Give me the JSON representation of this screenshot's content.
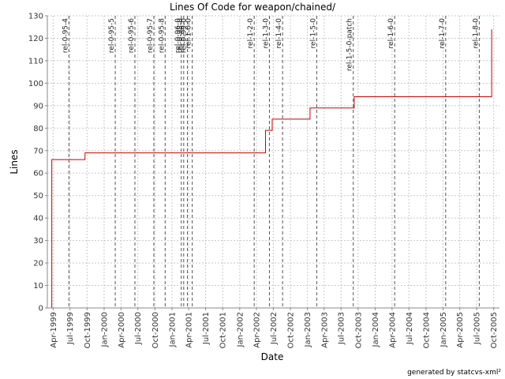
{
  "chart_data": {
    "type": "line",
    "title": "Lines Of Code for weapon/chained/",
    "xlabel": "Date",
    "ylabel": "Lines",
    "footer": "generated by statcvs-xml²",
    "ylim": [
      0,
      130
    ],
    "xlim": [
      "1999-03-01",
      "2005-11-01"
    ],
    "y_ticks": [
      0,
      10,
      20,
      30,
      40,
      50,
      60,
      70,
      80,
      90,
      100,
      110,
      120,
      130
    ],
    "x_ticks": [
      {
        "date": "1999-04-01",
        "label": "Apr-1999"
      },
      {
        "date": "1999-07-01",
        "label": "Jul-1999"
      },
      {
        "date": "1999-10-01",
        "label": "Oct-1999"
      },
      {
        "date": "2000-01-01",
        "label": "Jan-2000"
      },
      {
        "date": "2000-04-01",
        "label": "Apr-2000"
      },
      {
        "date": "2000-07-01",
        "label": "Jul-2000"
      },
      {
        "date": "2000-10-01",
        "label": "Oct-2000"
      },
      {
        "date": "2001-01-01",
        "label": "Jan-2001"
      },
      {
        "date": "2001-04-01",
        "label": "Apr-2001"
      },
      {
        "date": "2001-07-01",
        "label": "Jul-2001"
      },
      {
        "date": "2001-10-01",
        "label": "Oct-2001"
      },
      {
        "date": "2002-01-01",
        "label": "Jan-2002"
      },
      {
        "date": "2002-04-01",
        "label": "Apr-2002"
      },
      {
        "date": "2002-07-01",
        "label": "Jul-2002"
      },
      {
        "date": "2002-10-01",
        "label": "Oct-2002"
      },
      {
        "date": "2003-01-01",
        "label": "Jan-2003"
      },
      {
        "date": "2003-04-01",
        "label": "Apr-2003"
      },
      {
        "date": "2003-07-01",
        "label": "Jul-2003"
      },
      {
        "date": "2003-10-01",
        "label": "Oct-2003"
      },
      {
        "date": "2004-01-01",
        "label": "Jan-2004"
      },
      {
        "date": "2004-04-01",
        "label": "Apr-2004"
      },
      {
        "date": "2004-07-01",
        "label": "Jul-2004"
      },
      {
        "date": "2004-10-01",
        "label": "Oct-2004"
      },
      {
        "date": "2005-01-01",
        "label": "Jan-2005"
      },
      {
        "date": "2005-04-01",
        "label": "Apr-2005"
      },
      {
        "date": "2005-07-01",
        "label": "Jul-2005"
      },
      {
        "date": "2005-10-01",
        "label": "Oct-2005"
      }
    ],
    "grid": true,
    "series": [
      {
        "color": "#cc0000",
        "step": true,
        "points": [
          {
            "x": "1999-03-25",
            "y": 0
          },
          {
            "x": "1999-03-25",
            "y": 66
          },
          {
            "x": "1999-09-20",
            "y": 69
          },
          {
            "x": "2002-05-20",
            "y": 79
          },
          {
            "x": "2002-06-25",
            "y": 84
          },
          {
            "x": "2003-01-15",
            "y": 89
          },
          {
            "x": "2003-09-10",
            "y": 94
          },
          {
            "x": "2005-09-20",
            "y": 124
          }
        ]
      }
    ],
    "markers": [
      {
        "date": "1999-06-25",
        "label": "rel-0-95-4"
      },
      {
        "date": "2000-03-01",
        "label": "rel-0-95-5"
      },
      {
        "date": "2000-06-15",
        "label": "rel-0-95-6"
      },
      {
        "date": "2000-09-25",
        "label": "rel-0-95-7"
      },
      {
        "date": "2000-11-25",
        "label": "rel-0-95-8"
      },
      {
        "date": "2001-02-20",
        "label": "rel-0-96-0"
      },
      {
        "date": "2001-03-05",
        "label": "rel-0-98-0"
      },
      {
        "date": "2001-03-25",
        "label": "rel-0-99-0"
      },
      {
        "date": "2001-04-20",
        "label": "rel-1-0-0"
      },
      {
        "date": "2002-03-20",
        "label": "rel-1-2-0"
      },
      {
        "date": "2002-06-10",
        "label": "rel-1-3-0"
      },
      {
        "date": "2002-08-20",
        "label": "rel-1-4-0"
      },
      {
        "date": "2003-02-20",
        "label": "rel-1-5-0"
      },
      {
        "date": "2003-09-05",
        "label": "rel-1-5-0-patch"
      },
      {
        "date": "2004-04-15",
        "label": "rel-1-6-0"
      },
      {
        "date": "2005-01-15",
        "label": "rel-1-7-0"
      },
      {
        "date": "2005-07-15",
        "label": "rel-1-8-0"
      }
    ],
    "colors": {
      "series": "#cc0000",
      "grid": "#c8c8c8",
      "marker": "#555555",
      "axis": "#888888"
    }
  }
}
